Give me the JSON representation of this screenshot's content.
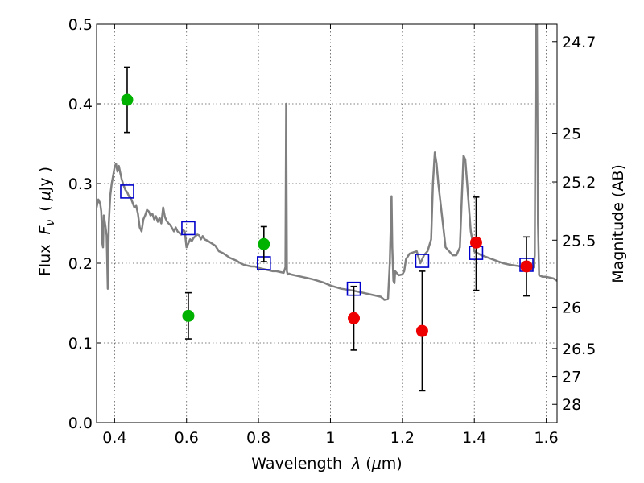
{
  "chart_data": {
    "type": "scatter",
    "title": "",
    "xlabel": "Wavelength",
    "xlabel_symbol": "λ",
    "xlabel_unit_open": "(",
    "xlabel_unit_mu": "μ",
    "xlabel_unit_rest": "m)",
    "ylabel": "Flux",
    "ylabel_symbol": "F",
    "ylabel_symbol_sub": "ν",
    "ylabel_unit_open": "(",
    "ylabel_unit_mu": "μ",
    "ylabel_unit_rest": "Jy )",
    "y2label": "Magnitude (AB)",
    "xlim": [
      0.35,
      1.63
    ],
    "ylim": [
      0.0,
      0.5
    ],
    "grid": true,
    "x_ticks": [
      0.4,
      0.6,
      0.8,
      1.0,
      1.2,
      1.4,
      1.6
    ],
    "x_tick_labels": [
      "0.4",
      "0.6",
      "0.8",
      "1",
      "1.2",
      "1.4",
      "1.6"
    ],
    "y_ticks": [
      0.0,
      0.1,
      0.2,
      0.3,
      0.4,
      0.5
    ],
    "y_tick_labels": [
      "0.0",
      "0.1",
      "0.2",
      "0.3",
      "0.4",
      "0.5"
    ],
    "y2_ticks": [
      {
        "label": "24.7",
        "flux": 0.478
      },
      {
        "label": "25",
        "flux": 0.363
      },
      {
        "label": "25.2",
        "flux": 0.302
      },
      {
        "label": "25.5",
        "flux": 0.229
      },
      {
        "label": "26",
        "flux": 0.145
      },
      {
        "label": "26.5",
        "flux": 0.093
      },
      {
        "label": "27",
        "flux": 0.058
      },
      {
        "label": "28",
        "flux": 0.023
      }
    ],
    "series": [
      {
        "name": "model_spectrum",
        "kind": "line",
        "color": "#808080",
        "x": [
          0.35,
          0.355,
          0.36,
          0.363,
          0.366,
          0.368,
          0.37,
          0.372,
          0.375,
          0.378,
          0.381,
          0.384,
          0.388,
          0.392,
          0.396,
          0.4,
          0.404,
          0.408,
          0.412,
          0.416,
          0.42,
          0.425,
          0.43,
          0.435,
          0.44,
          0.445,
          0.45,
          0.455,
          0.46,
          0.465,
          0.47,
          0.475,
          0.48,
          0.485,
          0.49,
          0.495,
          0.5,
          0.505,
          0.51,
          0.515,
          0.52,
          0.525,
          0.53,
          0.535,
          0.54,
          0.545,
          0.55,
          0.555,
          0.56,
          0.565,
          0.57,
          0.575,
          0.58,
          0.585,
          0.59,
          0.595,
          0.6,
          0.605,
          0.61,
          0.615,
          0.62,
          0.625,
          0.63,
          0.635,
          0.64,
          0.645,
          0.65,
          0.66,
          0.67,
          0.68,
          0.69,
          0.7,
          0.71,
          0.72,
          0.73,
          0.74,
          0.75,
          0.76,
          0.77,
          0.78,
          0.79,
          0.8,
          0.81,
          0.82,
          0.83,
          0.84,
          0.85,
          0.86,
          0.87,
          0.875,
          0.877,
          0.879,
          0.881,
          0.885,
          0.89,
          0.9,
          0.92,
          0.95,
          0.98,
          1.0,
          1.03,
          1.06,
          1.09,
          1.12,
          1.14,
          1.15,
          1.16,
          1.165,
          1.17,
          1.172,
          1.175,
          1.178,
          1.18,
          1.19,
          1.2,
          1.205,
          1.21,
          1.22,
          1.24,
          1.25,
          1.26,
          1.27,
          1.28,
          1.285,
          1.29,
          1.295,
          1.3,
          1.31,
          1.32,
          1.34,
          1.35,
          1.36,
          1.365,
          1.37,
          1.375,
          1.38,
          1.39,
          1.4,
          1.42,
          1.45,
          1.48,
          1.5,
          1.53,
          1.55,
          1.56,
          1.565,
          1.568,
          1.571,
          1.574,
          1.577,
          1.58,
          1.59,
          1.6,
          1.61,
          1.62,
          1.63
        ],
        "y": [
          0.27,
          0.28,
          0.275,
          0.265,
          0.225,
          0.22,
          0.26,
          0.255,
          0.245,
          0.235,
          0.168,
          0.25,
          0.285,
          0.3,
          0.31,
          0.32,
          0.325,
          0.315,
          0.322,
          0.313,
          0.305,
          0.298,
          0.292,
          0.289,
          0.284,
          0.282,
          0.276,
          0.27,
          0.272,
          0.262,
          0.245,
          0.24,
          0.255,
          0.26,
          0.267,
          0.265,
          0.26,
          0.262,
          0.255,
          0.259,
          0.252,
          0.257,
          0.25,
          0.27,
          0.258,
          0.253,
          0.25,
          0.248,
          0.244,
          0.24,
          0.245,
          0.24,
          0.238,
          0.236,
          0.242,
          0.24,
          0.22,
          0.225,
          0.23,
          0.228,
          0.232,
          0.234,
          0.236,
          0.235,
          0.23,
          0.234,
          0.23,
          0.228,
          0.225,
          0.222,
          0.215,
          0.213,
          0.21,
          0.207,
          0.205,
          0.203,
          0.2,
          0.198,
          0.197,
          0.196,
          0.196,
          0.194,
          0.193,
          0.192,
          0.191,
          0.19,
          0.19,
          0.189,
          0.188,
          0.195,
          0.4,
          0.19,
          0.186,
          0.187,
          0.186,
          0.185,
          0.183,
          0.18,
          0.176,
          0.172,
          0.168,
          0.166,
          0.163,
          0.16,
          0.158,
          0.154,
          0.155,
          0.2,
          0.284,
          0.22,
          0.178,
          0.175,
          0.19,
          0.185,
          0.186,
          0.19,
          0.205,
          0.212,
          0.215,
          0.2,
          0.21,
          0.215,
          0.23,
          0.3,
          0.339,
          0.325,
          0.3,
          0.26,
          0.22,
          0.21,
          0.21,
          0.22,
          0.28,
          0.335,
          0.33,
          0.3,
          0.24,
          0.215,
          0.21,
          0.205,
          0.2,
          0.198,
          0.196,
          0.195,
          0.193,
          0.195,
          0.21,
          0.5,
          0.5,
          0.25,
          0.185,
          0.183,
          0.183,
          0.182,
          0.181,
          0.178
        ]
      },
      {
        "name": "model_photometry",
        "kind": "open_square",
        "color": "#0000cc",
        "x": [
          0.435,
          0.605,
          0.815,
          1.065,
          1.255,
          1.405,
          1.545
        ],
        "y": [
          0.29,
          0.244,
          0.2,
          0.168,
          0.203,
          0.213,
          0.198
        ]
      },
      {
        "name": "observed_optical",
        "kind": "marker_errorbar",
        "color": "#00b200",
        "x": [
          0.435,
          0.605,
          0.815
        ],
        "y": [
          0.405,
          0.134,
          0.224
        ],
        "yerr_lo": [
          0.041,
          0.029,
          0.022
        ],
        "yerr_hi": [
          0.041,
          0.029,
          0.022
        ]
      },
      {
        "name": "observed_nir",
        "kind": "marker_errorbar",
        "color": "#ee0000",
        "x": [
          1.065,
          1.255,
          1.405,
          1.545
        ],
        "y": [
          0.131,
          0.115,
          0.226,
          0.196
        ],
        "yerr_lo": [
          0.04,
          0.075,
          0.06,
          0.037
        ],
        "yerr_hi": [
          0.04,
          0.075,
          0.057,
          0.037
        ]
      }
    ]
  }
}
